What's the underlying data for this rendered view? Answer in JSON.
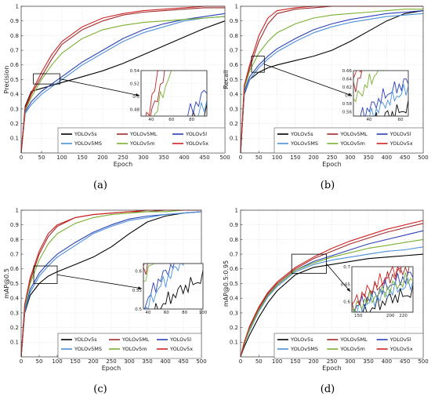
{
  "series_styles": [
    {
      "name": "YOLOv5s",
      "color": "#000000"
    },
    {
      "name": "YOLOv5ML",
      "color": "#a22a2a"
    },
    {
      "name": "YOLOv5l",
      "color": "#2b3fb8"
    },
    {
      "name": "YOLOv5MS",
      "color": "#4a90d9"
    },
    {
      "name": "YOLOv5m",
      "color": "#7ab030"
    },
    {
      "name": "YOLOv5x",
      "color": "#cc2222"
    }
  ],
  "chart_data": [
    {
      "type": "line",
      "panel_label": "(a)",
      "xlabel": "Epoch",
      "ylabel": "Precision",
      "xlim": [
        0,
        500
      ],
      "ylim": [
        0,
        1
      ],
      "xticks": [
        0,
        50,
        100,
        150,
        200,
        250,
        300,
        350,
        400,
        450,
        500
      ],
      "yticks": [
        0.1,
        0.2,
        0.3,
        0.4,
        0.5,
        0.6,
        0.7,
        0.8,
        0.9,
        1
      ],
      "grid": true,
      "legend": "bottom-right",
      "inset": {
        "xlim": [
          30,
          95
        ],
        "ylim": [
          0.47,
          0.54
        ],
        "xticks": [
          40,
          60,
          80
        ],
        "yticks": [
          0.48,
          0.5,
          0.52,
          0.54
        ]
      },
      "series": [
        {
          "name": "YOLOv5s",
          "x": [
            0,
            10,
            25,
            50,
            75,
            100,
            150,
            200,
            250,
            300,
            350,
            400,
            450,
            500
          ],
          "values": [
            0.0,
            0.32,
            0.42,
            0.44,
            0.46,
            0.48,
            0.52,
            0.56,
            0.61,
            0.67,
            0.73,
            0.79,
            0.85,
            0.9
          ]
        },
        {
          "name": "YOLOv5ML",
          "x": [
            0,
            10,
            25,
            50,
            75,
            100,
            150,
            200,
            250,
            300,
            350,
            400,
            450,
            500
          ],
          "values": [
            0.0,
            0.3,
            0.4,
            0.52,
            0.64,
            0.74,
            0.84,
            0.9,
            0.94,
            0.96,
            0.97,
            0.98,
            0.99,
            0.99
          ]
        },
        {
          "name": "YOLOv5l",
          "x": [
            0,
            10,
            25,
            50,
            75,
            100,
            150,
            200,
            250,
            300,
            350,
            400,
            450,
            500
          ],
          "values": [
            0.0,
            0.28,
            0.35,
            0.42,
            0.47,
            0.52,
            0.62,
            0.7,
            0.78,
            0.84,
            0.88,
            0.91,
            0.93,
            0.95
          ]
        },
        {
          "name": "YOLOv5MS",
          "x": [
            0,
            10,
            25,
            50,
            75,
            100,
            150,
            200,
            250,
            300,
            350,
            400,
            450,
            500
          ],
          "values": [
            0.0,
            0.27,
            0.33,
            0.4,
            0.45,
            0.5,
            0.6,
            0.68,
            0.76,
            0.82,
            0.86,
            0.9,
            0.92,
            0.93
          ]
        },
        {
          "name": "YOLOv5m",
          "x": [
            0,
            10,
            25,
            50,
            75,
            100,
            150,
            200,
            250,
            300,
            350,
            400,
            450,
            500
          ],
          "values": [
            0.0,
            0.29,
            0.38,
            0.5,
            0.6,
            0.68,
            0.78,
            0.84,
            0.87,
            0.89,
            0.9,
            0.91,
            0.92,
            0.93
          ]
        },
        {
          "name": "YOLOv5x",
          "x": [
            0,
            10,
            25,
            50,
            75,
            100,
            150,
            200,
            250,
            300,
            350,
            400,
            450,
            500
          ],
          "values": [
            0.0,
            0.31,
            0.41,
            0.55,
            0.67,
            0.76,
            0.86,
            0.92,
            0.95,
            0.97,
            0.98,
            0.99,
            1.0,
            1.0
          ]
        }
      ]
    },
    {
      "type": "line",
      "panel_label": "(b)",
      "xlabel": "Epoch",
      "ylabel": "Recall",
      "xlim": [
        0,
        500
      ],
      "ylim": [
        0,
        1
      ],
      "xticks": [
        0,
        50,
        100,
        150,
        200,
        250,
        300,
        350,
        400,
        450,
        500
      ],
      "yticks": [
        0.1,
        0.2,
        0.3,
        0.4,
        0.5,
        0.6,
        0.7,
        0.8,
        0.9,
        1
      ],
      "grid": true,
      "legend": "bottom-right",
      "inset": {
        "xlim": [
          30,
          65
        ],
        "ylim": [
          0.55,
          0.66
        ],
        "xticks": [
          40,
          60
        ],
        "yticks": [
          0.56,
          0.58,
          0.6,
          0.62,
          0.64,
          0.66
        ]
      },
      "series": [
        {
          "name": "YOLOv5s",
          "x": [
            0,
            10,
            25,
            50,
            75,
            100,
            150,
            200,
            250,
            300,
            350,
            400,
            450,
            500
          ],
          "values": [
            0.0,
            0.4,
            0.5,
            0.55,
            0.58,
            0.6,
            0.63,
            0.66,
            0.7,
            0.76,
            0.83,
            0.9,
            0.95,
            0.97
          ]
        },
        {
          "name": "YOLOv5ML",
          "x": [
            0,
            10,
            25,
            50,
            75,
            100,
            150,
            200,
            250,
            300,
            350,
            400,
            450,
            500
          ],
          "values": [
            0.0,
            0.45,
            0.58,
            0.76,
            0.88,
            0.95,
            0.98,
            0.99,
            1.0,
            1.0,
            1.0,
            1.0,
            1.0,
            1.0
          ]
        },
        {
          "name": "YOLOv5l",
          "x": [
            0,
            10,
            25,
            50,
            75,
            100,
            150,
            200,
            250,
            300,
            350,
            400,
            450,
            500
          ],
          "values": [
            0.0,
            0.42,
            0.52,
            0.6,
            0.66,
            0.71,
            0.78,
            0.84,
            0.88,
            0.91,
            0.93,
            0.95,
            0.96,
            0.97
          ]
        },
        {
          "name": "YOLOv5MS",
          "x": [
            0,
            10,
            25,
            50,
            75,
            100,
            150,
            200,
            250,
            300,
            350,
            400,
            450,
            500
          ],
          "values": [
            0.0,
            0.41,
            0.5,
            0.58,
            0.64,
            0.69,
            0.76,
            0.82,
            0.86,
            0.89,
            0.91,
            0.93,
            0.94,
            0.95
          ]
        },
        {
          "name": "YOLOv5m",
          "x": [
            0,
            10,
            25,
            50,
            75,
            100,
            150,
            200,
            250,
            300,
            350,
            400,
            450,
            500
          ],
          "values": [
            0.0,
            0.44,
            0.56,
            0.68,
            0.76,
            0.82,
            0.88,
            0.92,
            0.94,
            0.95,
            0.96,
            0.97,
            0.98,
            0.98
          ]
        },
        {
          "name": "YOLOv5x",
          "x": [
            0,
            10,
            25,
            50,
            75,
            100,
            150,
            200,
            250,
            300,
            350,
            400,
            450,
            500
          ],
          "values": [
            0.0,
            0.46,
            0.6,
            0.8,
            0.92,
            0.97,
            0.99,
            1.0,
            1.0,
            1.0,
            1.0,
            1.0,
            1.0,
            1.0
          ]
        }
      ]
    },
    {
      "type": "line",
      "panel_label": "(c)",
      "xlabel": "Epoch",
      "ylabel": "mAP@0.5",
      "xlim": [
        0,
        500
      ],
      "ylim": [
        0,
        1
      ],
      "xticks": [
        0,
        50,
        100,
        150,
        200,
        250,
        300,
        350,
        400,
        450,
        500
      ],
      "yticks": [
        0.1,
        0.2,
        0.3,
        0.4,
        0.5,
        0.6,
        0.7,
        0.8,
        0.9,
        1
      ],
      "grid": true,
      "legend": "bottom-right",
      "inset": {
        "xlim": [
          35,
          100
        ],
        "ylim": [
          0.5,
          0.62
        ],
        "xticks": [
          40,
          60,
          80,
          100
        ],
        "yticks": [
          0.5,
          0.55,
          0.6
        ]
      },
      "series": [
        {
          "name": "YOLOv5s",
          "x": [
            0,
            10,
            25,
            50,
            75,
            100,
            150,
            200,
            250,
            300,
            350,
            400,
            450,
            500
          ],
          "values": [
            0.0,
            0.3,
            0.42,
            0.5,
            0.55,
            0.58,
            0.63,
            0.68,
            0.75,
            0.84,
            0.92,
            0.96,
            0.98,
            0.99
          ]
        },
        {
          "name": "YOLOv5ML",
          "x": [
            0,
            10,
            25,
            50,
            75,
            100,
            150,
            200,
            250,
            300,
            350,
            400,
            450,
            500
          ],
          "values": [
            0.0,
            0.35,
            0.52,
            0.7,
            0.82,
            0.89,
            0.95,
            0.97,
            0.98,
            0.99,
            0.99,
            1.0,
            1.0,
            1.0
          ]
        },
        {
          "name": "YOLOv5l",
          "x": [
            0,
            10,
            25,
            50,
            75,
            100,
            150,
            200,
            250,
            300,
            350,
            400,
            450,
            500
          ],
          "values": [
            0.0,
            0.32,
            0.46,
            0.57,
            0.64,
            0.7,
            0.78,
            0.85,
            0.9,
            0.94,
            0.96,
            0.97,
            0.98,
            0.99
          ]
        },
        {
          "name": "YOLOv5MS",
          "x": [
            0,
            10,
            25,
            50,
            75,
            100,
            150,
            200,
            250,
            300,
            350,
            400,
            450,
            500
          ],
          "values": [
            0.0,
            0.31,
            0.44,
            0.55,
            0.62,
            0.68,
            0.76,
            0.84,
            0.89,
            0.93,
            0.95,
            0.97,
            0.98,
            0.99
          ]
        },
        {
          "name": "YOLOv5m",
          "x": [
            0,
            10,
            25,
            50,
            75,
            100,
            150,
            200,
            250,
            300,
            350,
            400,
            450,
            500
          ],
          "values": [
            0.0,
            0.34,
            0.5,
            0.66,
            0.77,
            0.84,
            0.91,
            0.95,
            0.97,
            0.98,
            0.99,
            0.99,
            1.0,
            1.0
          ]
        },
        {
          "name": "YOLOv5x",
          "x": [
            0,
            10,
            25,
            50,
            75,
            100,
            150,
            200,
            250,
            300,
            350,
            400,
            450,
            500
          ],
          "values": [
            0.0,
            0.36,
            0.54,
            0.72,
            0.84,
            0.9,
            0.95,
            0.97,
            0.98,
            0.99,
            1.0,
            1.0,
            1.0,
            1.0
          ]
        }
      ]
    },
    {
      "type": "line",
      "panel_label": "(d)",
      "xlabel": "Epoch",
      "ylabel": "mAP@0.5:0.95",
      "xlim": [
        0,
        500
      ],
      "ylim": [
        0,
        1
      ],
      "xticks": [
        0,
        50,
        100,
        150,
        200,
        250,
        300,
        350,
        400,
        450,
        500
      ],
      "yticks": [
        0.1,
        0.2,
        0.3,
        0.4,
        0.5,
        0.6,
        0.7,
        0.8,
        0.9,
        1
      ],
      "grid": true,
      "legend": "bottom-right",
      "inset": {
        "xlim": [
          140,
          235
        ],
        "ylim": [
          0.57,
          0.7
        ],
        "xticks": [
          150,
          200,
          220
        ],
        "yticks": [
          0.6,
          0.65,
          0.7
        ]
      },
      "series": [
        {
          "name": "YOLOv5s",
          "x": [
            0,
            10,
            25,
            50,
            75,
            100,
            150,
            200,
            250,
            300,
            350,
            400,
            450,
            500
          ],
          "values": [
            0.0,
            0.07,
            0.15,
            0.27,
            0.37,
            0.45,
            0.56,
            0.61,
            0.63,
            0.65,
            0.67,
            0.68,
            0.69,
            0.7
          ]
        },
        {
          "name": "YOLOv5ML",
          "x": [
            0,
            10,
            25,
            50,
            75,
            100,
            150,
            200,
            250,
            300,
            350,
            400,
            450,
            500
          ],
          "values": [
            0.0,
            0.1,
            0.2,
            0.33,
            0.43,
            0.5,
            0.6,
            0.67,
            0.72,
            0.77,
            0.81,
            0.85,
            0.88,
            0.91
          ]
        },
        {
          "name": "YOLOv5l",
          "x": [
            0,
            10,
            25,
            50,
            75,
            100,
            150,
            200,
            250,
            300,
            350,
            400,
            450,
            500
          ],
          "values": [
            0.0,
            0.09,
            0.19,
            0.32,
            0.42,
            0.49,
            0.59,
            0.65,
            0.69,
            0.73,
            0.77,
            0.8,
            0.83,
            0.86
          ]
        },
        {
          "name": "YOLOv5MS",
          "x": [
            0,
            10,
            25,
            50,
            75,
            100,
            150,
            200,
            250,
            300,
            350,
            400,
            450,
            500
          ],
          "values": [
            0.0,
            0.09,
            0.18,
            0.31,
            0.41,
            0.48,
            0.58,
            0.63,
            0.66,
            0.68,
            0.7,
            0.72,
            0.73,
            0.75
          ]
        },
        {
          "name": "YOLOv5m",
          "x": [
            0,
            10,
            25,
            50,
            75,
            100,
            150,
            200,
            250,
            300,
            350,
            400,
            450,
            500
          ],
          "values": [
            0.0,
            0.09,
            0.19,
            0.32,
            0.42,
            0.49,
            0.59,
            0.64,
            0.68,
            0.71,
            0.74,
            0.76,
            0.78,
            0.8
          ]
        },
        {
          "name": "YOLOv5x",
          "x": [
            0,
            10,
            25,
            50,
            75,
            100,
            150,
            200,
            250,
            300,
            350,
            400,
            450,
            500
          ],
          "values": [
            0.0,
            0.1,
            0.21,
            0.34,
            0.44,
            0.51,
            0.61,
            0.68,
            0.74,
            0.79,
            0.83,
            0.87,
            0.9,
            0.93
          ]
        }
      ]
    }
  ]
}
